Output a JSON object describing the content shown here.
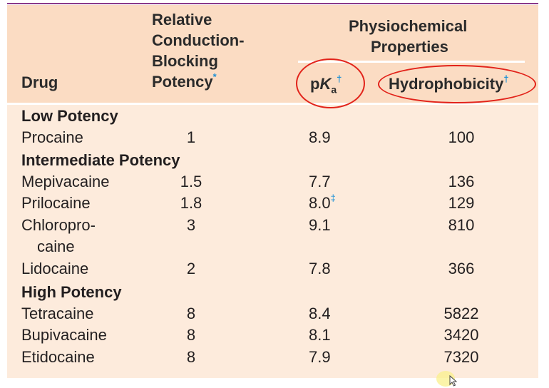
{
  "header": {
    "drug": "Drug",
    "potency_lines": [
      "Relative",
      "Conduction-",
      "Blocking",
      "Potency"
    ],
    "potency_mark": "*",
    "physio_lines": [
      "Physiochemical",
      "Properties"
    ],
    "pka_prefix": "p",
    "pka_k": "K",
    "pka_sub": "a",
    "pka_mark": "†",
    "hydro": "Hydrophobicity",
    "hydro_mark": "†"
  },
  "groups": {
    "low": "Low Potency",
    "intermediate": "Intermediate Potency",
    "high": "High Potency"
  },
  "rows": [
    {
      "drug": "Procaine",
      "potency": "1",
      "pka": "8.9",
      "hydro": "100"
    },
    {
      "drug": "Mepivacaine",
      "potency": "1.5",
      "pka": "7.7",
      "hydro": "136"
    },
    {
      "drug": "Prilocaine",
      "potency": "1.8",
      "pka": "8.0",
      "pka_mark": "‡",
      "hydro": "129"
    },
    {
      "drug": "Chloropro-",
      "drug_cont": "caine",
      "potency": "3",
      "pka": "9.1",
      "hydro": "810"
    },
    {
      "drug": "Lidocaine",
      "potency": "2",
      "pka": "7.8",
      "hydro": "366"
    },
    {
      "drug": "Tetracaine",
      "potency": "8",
      "pka": "8.4",
      "hydro": "5822"
    },
    {
      "drug": "Bupivacaine",
      "potency": "8",
      "pka": "8.1",
      "hydro": "3420"
    },
    {
      "drug": "Etidocaine",
      "potency": "8",
      "pka": "7.9",
      "hydro": "7320"
    }
  ],
  "colors": {
    "header_bg": "#fbdcc3",
    "body_bg": "#fdebdc",
    "annotation_red": "#e2231a",
    "footnote_blue": "#1a8fd6",
    "top_rule": "#8a3a8a"
  }
}
